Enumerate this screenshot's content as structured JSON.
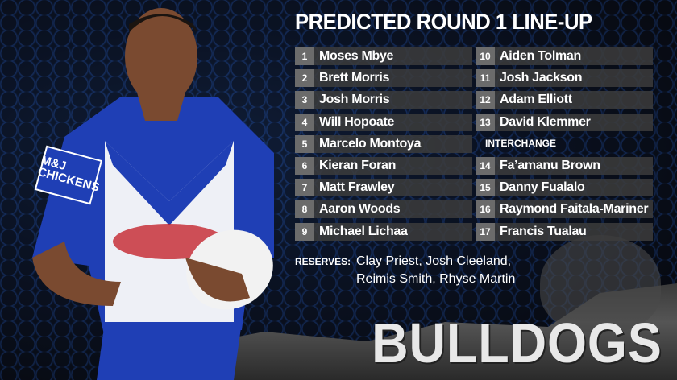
{
  "title": "PREDICTED ROUND 1 LINE-UP",
  "starters": [
    {
      "num": "1",
      "name": "Moses Mbye"
    },
    {
      "num": "2",
      "name": "Brett Morris"
    },
    {
      "num": "3",
      "name": "Josh Morris"
    },
    {
      "num": "4",
      "name": "Will Hopoate"
    },
    {
      "num": "5",
      "name": "Marcelo Montoya"
    },
    {
      "num": "6",
      "name": "Kieran Foran"
    },
    {
      "num": "7",
      "name": "Matt Frawley"
    },
    {
      "num": "8",
      "name": "Aaron Woods"
    },
    {
      "num": "9",
      "name": "Michael Lichaa"
    },
    {
      "num": "10",
      "name": "Aiden Tolman"
    },
    {
      "num": "11",
      "name": "Josh Jackson"
    },
    {
      "num": "12",
      "name": "Adam Elliott"
    },
    {
      "num": "13",
      "name": "David Klemmer"
    }
  ],
  "interchange_label": "INTERCHANGE",
  "interchange": [
    {
      "num": "14",
      "name": "Fa’amanu Brown"
    },
    {
      "num": "15",
      "name": "Danny Fualalo"
    },
    {
      "num": "16",
      "name": "Raymond Faitala-Mariner"
    },
    {
      "num": "17",
      "name": "Francis Tualau"
    }
  ],
  "reserves": {
    "label": "RESERVES:",
    "line1": "Clay Priest, Josh Cleeland,",
    "line2": "Reimis Smith, Rhyse Martin"
  },
  "logo": "BULLDOGS",
  "jersey_sponsor": "M&J CHICKENS"
}
